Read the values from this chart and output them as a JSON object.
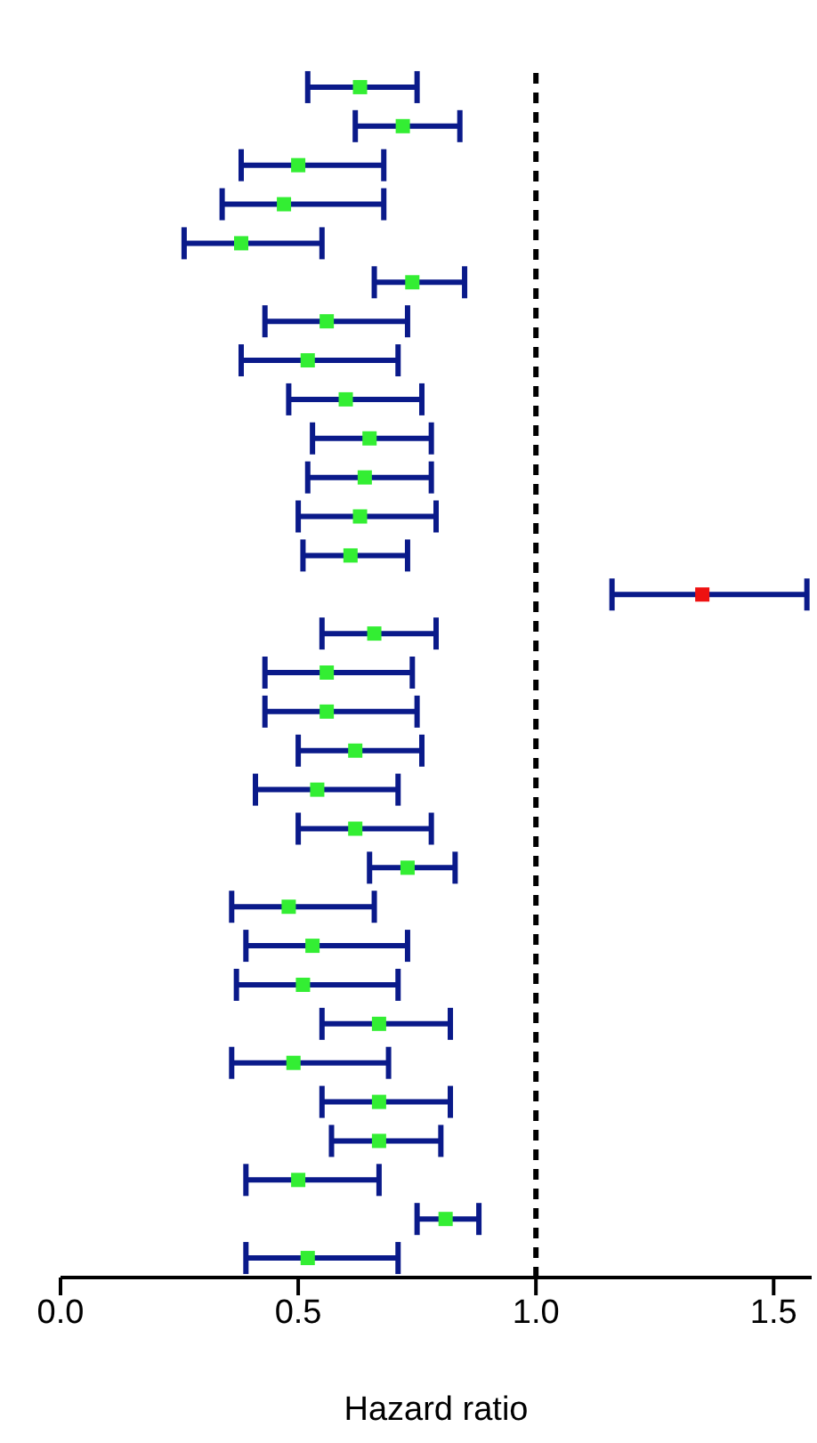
{
  "chart_data": {
    "type": "scatter",
    "orientation": "horizontal",
    "marker": "square",
    "xlabel": "Hazard ratio",
    "tick_labels": "x",
    "grid": false,
    "legend": false,
    "categories": [
      null,
      null,
      null,
      null,
      null,
      null,
      null,
      null,
      null,
      null,
      null,
      null,
      null,
      null,
      null,
      null,
      null,
      null,
      null,
      null,
      null,
      null,
      null,
      null,
      null,
      null,
      null,
      null,
      null,
      null,
      null
    ],
    "values": [
      0.63,
      0.72,
      0.5,
      0.47,
      0.38,
      0.74,
      0.56,
      0.52,
      0.6,
      0.65,
      0.64,
      0.63,
      0.61,
      1.35,
      0.66,
      0.56,
      0.56,
      0.62,
      0.54,
      0.62,
      0.73,
      0.48,
      0.53,
      0.51,
      0.67,
      0.49,
      0.67,
      0.67,
      0.5,
      0.81,
      0.52
    ],
    "errors": [
      [
        0.52,
        0.75
      ],
      [
        0.62,
        0.84
      ],
      [
        0.38,
        0.68
      ],
      [
        0.34,
        0.68
      ],
      [
        0.26,
        0.55
      ],
      [
        0.66,
        0.85
      ],
      [
        0.43,
        0.73
      ],
      [
        0.38,
        0.71
      ],
      [
        0.48,
        0.76
      ],
      [
        0.53,
        0.78
      ],
      [
        0.52,
        0.78
      ],
      [
        0.5,
        0.79
      ],
      [
        0.51,
        0.73
      ],
      [
        1.16,
        1.57
      ],
      [
        0.55,
        0.79
      ],
      [
        0.43,
        0.74
      ],
      [
        0.43,
        0.75
      ],
      [
        0.5,
        0.76
      ],
      [
        0.41,
        0.71
      ],
      [
        0.5,
        0.78
      ],
      [
        0.65,
        0.83
      ],
      [
        0.36,
        0.66
      ],
      [
        0.39,
        0.73
      ],
      [
        0.37,
        0.71
      ],
      [
        0.55,
        0.82
      ],
      [
        0.36,
        0.69
      ],
      [
        0.55,
        0.82
      ],
      [
        0.57,
        0.8
      ],
      [
        0.39,
        0.67
      ],
      [
        0.75,
        0.88
      ],
      [
        0.39,
        0.71
      ]
    ],
    "colors": [
      "#33ee33",
      "#33ee33",
      "#33ee33",
      "#33ee33",
      "#33ee33",
      "#33ee33",
      "#33ee33",
      "#33ee33",
      "#33ee33",
      "#33ee33",
      "#33ee33",
      "#33ee33",
      "#33ee33",
      "#ee1111",
      "#33ee33",
      "#33ee33",
      "#33ee33",
      "#33ee33",
      "#33ee33",
      "#33ee33",
      "#33ee33",
      "#33ee33",
      "#33ee33",
      "#33ee33",
      "#33ee33",
      "#33ee33",
      "#33ee33",
      "#33ee33",
      "#33ee33",
      "#33ee33",
      "#33ee33"
    ],
    "xlim": [
      0,
      1.58
    ],
    "xticks": [
      {
        "value": 0,
        "label": "0.0"
      },
      {
        "value": 0.5,
        "label": "0.5"
      },
      {
        "value": 1,
        "label": "1.0"
      },
      {
        "value": 1.5,
        "label": "1.5"
      }
    ],
    "ref_lines": [
      {
        "axis": "x",
        "value": 1,
        "line_style": "dashed",
        "color": "#000000"
      }
    ]
  }
}
